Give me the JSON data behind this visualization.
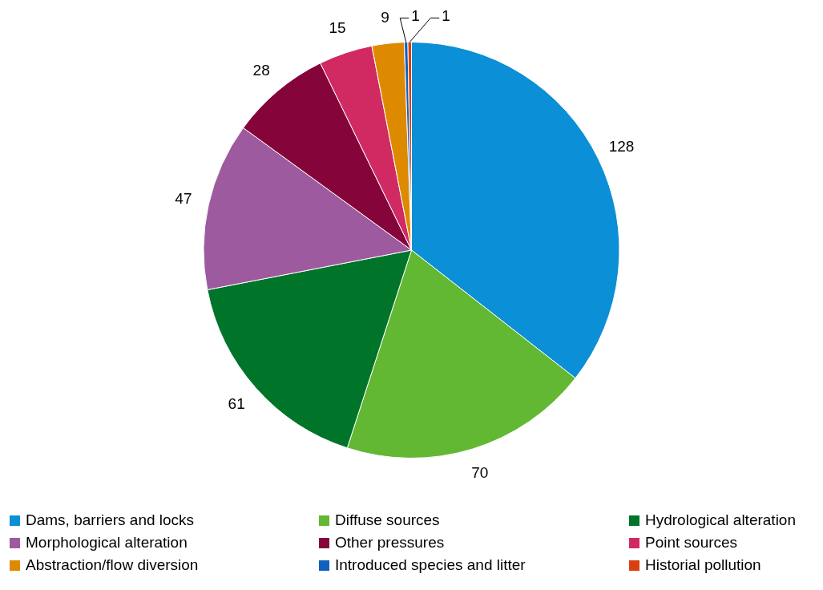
{
  "chart_data": {
    "type": "pie",
    "categories": [
      "Dams, barriers and locks",
      "Diffuse sources",
      "Hydrological alteration",
      "Morphological alteration",
      "Other pressures",
      "Point sources",
      "Abstraction/flow diversion",
      "Introduced species and litter",
      "Historial pollution"
    ],
    "values": [
      128,
      70,
      61,
      47,
      28,
      15,
      9,
      1,
      1
    ],
    "colors": [
      "#0b8fd6",
      "#62b832",
      "#00752a",
      "#9e5a9e",
      "#85053a",
      "#d12a62",
      "#de8a00",
      "#1060c0",
      "#d94010"
    ],
    "data_labels": true,
    "legend": "bottom"
  }
}
